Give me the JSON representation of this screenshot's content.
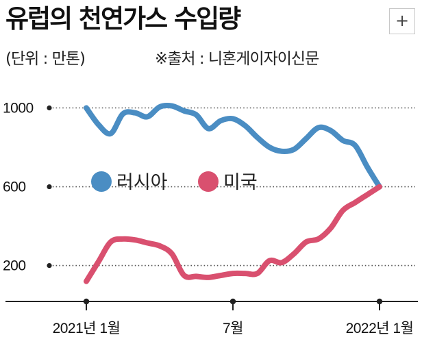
{
  "header": {
    "title": "유럽의 천연가스 수입량",
    "unit": "(단위 : 만톤)",
    "source": "※출처 : 니혼게이자이신문",
    "zoom_label": "+"
  },
  "colors": {
    "russia": "#4a8dc3",
    "usa": "#d9506f",
    "axis": "#222222",
    "grid": "#555555"
  },
  "chart_data": {
    "type": "line",
    "title": "유럽의 천연가스 수입량",
    "unit": "만톤",
    "source": "니혼게이자이신문",
    "xlabel": "",
    "ylabel": "",
    "x": [
      0,
      0.5,
      1,
      1.5,
      2,
      2.5,
      3,
      3.5,
      4,
      4.5,
      5,
      5.5,
      6,
      6.5,
      7,
      7.5,
      8,
      8.5,
      9,
      9.5,
      10,
      10.5,
      11,
      11.5,
      12
    ],
    "xlim": [
      0,
      12
    ],
    "x_ticks": [
      {
        "x": 0,
        "label": "2021년 1월"
      },
      {
        "x": 6,
        "label": "7월"
      },
      {
        "x": 12,
        "label": "2022년 1월"
      }
    ],
    "ylim": [
      -10,
      1040
    ],
    "y_ticks": [
      {
        "y": 1000,
        "label": "1000"
      },
      {
        "y": 600,
        "label": "600"
      },
      {
        "y": 200,
        "label": "200"
      }
    ],
    "grid": "dotted horizontal at ticks",
    "series": [
      {
        "name": "러시아",
        "color": "#4a8dc3",
        "values": [
          1000,
          915,
          870,
          970,
          975,
          955,
          1005,
          1010,
          985,
          965,
          895,
          935,
          945,
          910,
          850,
          800,
          780,
          790,
          845,
          900,
          885,
          835,
          810,
          700,
          600
        ]
      },
      {
        "name": "미국",
        "color": "#d9506f",
        "values": [
          120,
          220,
          320,
          335,
          330,
          315,
          300,
          260,
          150,
          145,
          140,
          150,
          160,
          160,
          160,
          225,
          215,
          260,
          320,
          335,
          390,
          480,
          520,
          560,
          600
        ]
      }
    ],
    "legend": {
      "position": "center-left",
      "entries": [
        {
          "name": "러시아",
          "color": "#4a8dc3"
        },
        {
          "name": "미국",
          "color": "#d9506f"
        }
      ]
    }
  }
}
